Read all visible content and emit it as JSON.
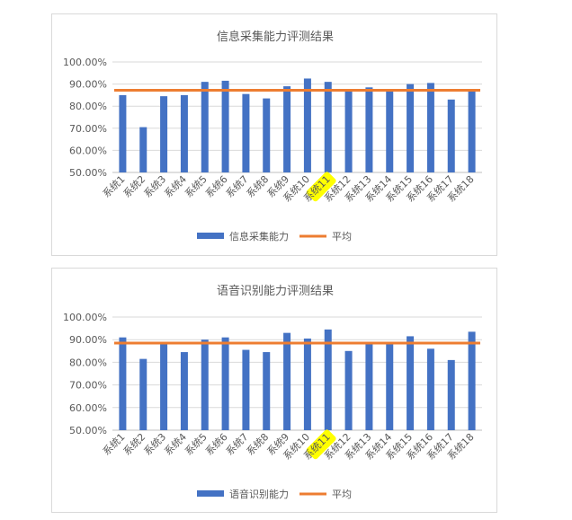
{
  "charts": {
    "chart_data": [
      {
        "type": "bar",
        "title": "信息采集能力评测结果",
        "categories": [
          "系统1",
          "系统2",
          "系统3",
          "系统4",
          "系统5",
          "系统6",
          "系统7",
          "系统8",
          "系统9",
          "系统10",
          "系统11",
          "系统12",
          "系统13",
          "系统14",
          "系统15",
          "系统16",
          "系统17",
          "系统18"
        ],
        "series": [
          {
            "name": "信息采集能力",
            "type": "bar",
            "color": "#4472c4",
            "values": [
              85,
              70.5,
              84.5,
              85,
              91,
              91.5,
              85.5,
              83.5,
              89,
              92.5,
              91,
              87,
              88.5,
              87,
              90,
              90.5,
              83,
              87.5
            ]
          },
          {
            "name": "平均",
            "type": "line",
            "color": "#ed7d31",
            "values": [
              87.2,
              87.2,
              87.2,
              87.2,
              87.2,
              87.2,
              87.2,
              87.2,
              87.2,
              87.2,
              87.2,
              87.2,
              87.2,
              87.2,
              87.2,
              87.2,
              87.2,
              87.2
            ]
          }
        ],
        "ylim": [
          50,
          100
        ],
        "yticks": [
          "100.00%",
          "90.00%",
          "80.00%",
          "70.00%",
          "60.00%",
          "50.00%"
        ],
        "grid": true,
        "legend": "bottom",
        "highlight_category": "系统11",
        "highlight_color": "#ffff00"
      },
      {
        "type": "bar",
        "title": "语音识别能力评测结果",
        "categories": [
          "系统1",
          "系统2",
          "系统3",
          "系统4",
          "系统5",
          "系统6",
          "系统7",
          "系统8",
          "系统9",
          "系统10",
          "系统11",
          "系统12",
          "系统13",
          "系统14",
          "系统15",
          "系统16",
          "系统17",
          "系统18"
        ],
        "series": [
          {
            "name": "语音识别能力",
            "type": "bar",
            "color": "#4472c4",
            "values": [
              91,
              81.5,
              88,
              84.5,
              90,
              91,
              85.5,
              84.5,
              93,
              90.5,
              94.5,
              85,
              88,
              88,
              91.5,
              86,
              81,
              93.5
            ]
          },
          {
            "name": "平均",
            "type": "line",
            "color": "#ed7d31",
            "values": [
              88.5,
              88.5,
              88.5,
              88.5,
              88.5,
              88.5,
              88.5,
              88.5,
              88.5,
              88.5,
              88.5,
              88.5,
              88.5,
              88.5,
              88.5,
              88.5,
              88.5,
              88.5
            ]
          }
        ],
        "ylim": [
          50,
          100
        ],
        "yticks": [
          "100.00%",
          "90.00%",
          "80.00%",
          "70.00%",
          "60.00%",
          "50.00%"
        ],
        "grid": true,
        "legend": "bottom",
        "highlight_category": "系统11",
        "highlight_color": "#ffff00"
      }
    ]
  }
}
